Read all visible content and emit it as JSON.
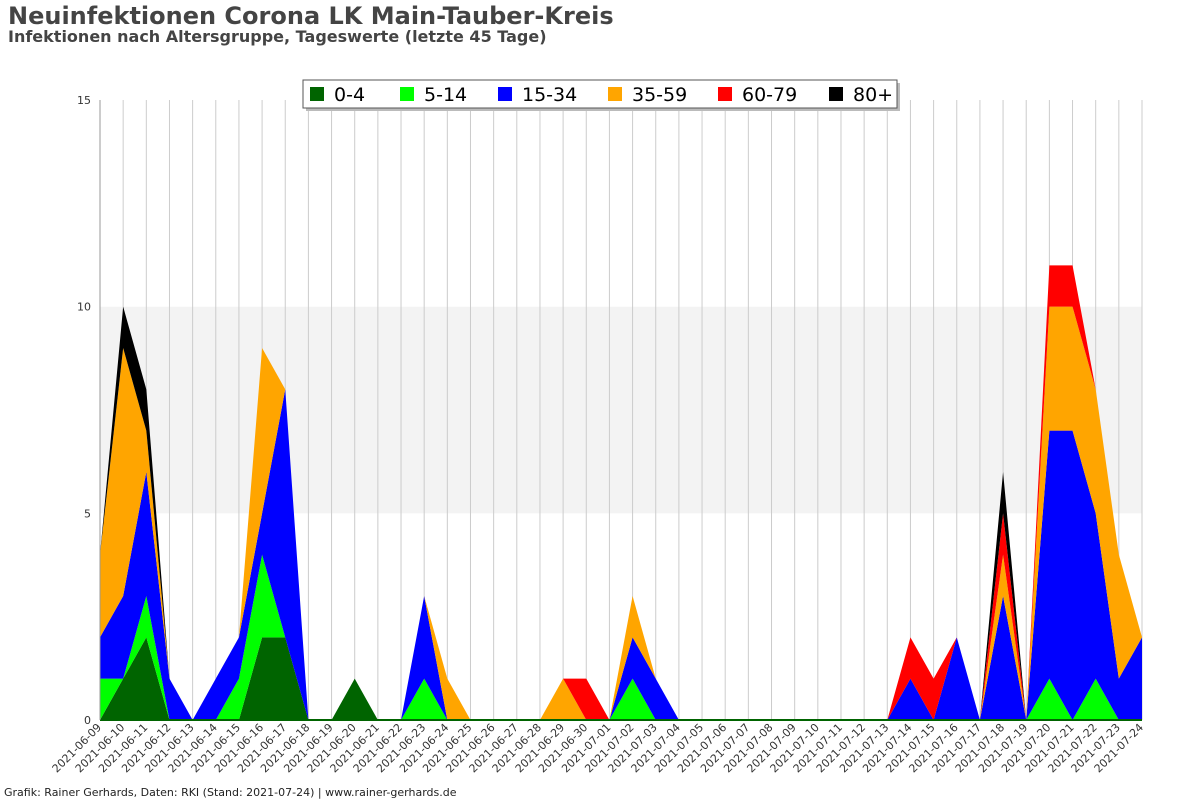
{
  "header": {
    "title": "Neuinfektionen Corona LK Main-Tauber-Kreis",
    "subtitle": "Infektionen nach Altersgruppe, Tageswerte (letzte 45 Tage)"
  },
  "footer": {
    "credit": "Grafik: Rainer Gerhards, Daten: RKI (Stand: 2021-07-24) | www.rainer-gerhards.de"
  },
  "chart_data": {
    "type": "area",
    "stacked": true,
    "x": [
      "2021-06-09",
      "2021-06-10",
      "2021-06-11",
      "2021-06-12",
      "2021-06-13",
      "2021-06-14",
      "2021-06-15",
      "2021-06-16",
      "2021-06-17",
      "2021-06-18",
      "2021-06-19",
      "2021-06-20",
      "2021-06-21",
      "2021-06-22",
      "2021-06-23",
      "2021-06-24",
      "2021-06-25",
      "2021-06-26",
      "2021-06-27",
      "2021-06-28",
      "2021-06-29",
      "2021-06-30",
      "2021-07-01",
      "2021-07-02",
      "2021-07-03",
      "2021-07-04",
      "2021-07-05",
      "2021-07-06",
      "2021-07-07",
      "2021-07-08",
      "2021-07-09",
      "2021-07-10",
      "2021-07-11",
      "2021-07-12",
      "2021-07-13",
      "2021-07-14",
      "2021-07-15",
      "2021-07-16",
      "2021-07-17",
      "2021-07-18",
      "2021-07-19",
      "2021-07-20",
      "2021-07-21",
      "2021-07-22",
      "2021-07-23",
      "2021-07-24"
    ],
    "series": [
      {
        "name": "0-4",
        "color": "#006400",
        "values": [
          0,
          1,
          2,
          0,
          0,
          0,
          0,
          2,
          2,
          0,
          0,
          1,
          0,
          0,
          0,
          0,
          0,
          0,
          0,
          0,
          0,
          0,
          0,
          0,
          0,
          0,
          0,
          0,
          0,
          0,
          0,
          0,
          0,
          0,
          0,
          0,
          0,
          0,
          0,
          0,
          0,
          0,
          0,
          0,
          0,
          0
        ]
      },
      {
        "name": "5-14",
        "color": "#00ff00",
        "values": [
          1,
          0,
          1,
          0,
          0,
          0,
          1,
          2,
          0,
          0,
          0,
          0,
          0,
          0,
          1,
          0,
          0,
          0,
          0,
          0,
          0,
          0,
          0,
          1,
          0,
          0,
          0,
          0,
          0,
          0,
          0,
          0,
          0,
          0,
          0,
          0,
          0,
          0,
          0,
          0,
          0,
          1,
          0,
          1,
          0,
          0
        ]
      },
      {
        "name": "15-34",
        "color": "#0000ff",
        "values": [
          1,
          2,
          3,
          1,
          0,
          1,
          1,
          1,
          6,
          0,
          0,
          0,
          0,
          0,
          2,
          0,
          0,
          0,
          0,
          0,
          0,
          0,
          0,
          1,
          1,
          0,
          0,
          0,
          0,
          0,
          0,
          0,
          0,
          0,
          0,
          1,
          0,
          2,
          0,
          3,
          0,
          6,
          7,
          4,
          1,
          2
        ]
      },
      {
        "name": "35-59",
        "color": "#ffa500",
        "values": [
          2,
          6,
          1,
          0,
          0,
          0,
          0,
          4,
          0,
          0,
          0,
          0,
          0,
          0,
          0,
          1,
          0,
          0,
          0,
          0,
          1,
          0,
          0,
          1,
          0,
          0,
          0,
          0,
          0,
          0,
          0,
          0,
          0,
          0,
          0,
          0,
          0,
          0,
          0,
          1,
          0,
          3,
          3,
          3,
          3,
          0
        ]
      },
      {
        "name": "60-79",
        "color": "#ff0000",
        "values": [
          0,
          0,
          0,
          0,
          0,
          0,
          0,
          0,
          0,
          0,
          0,
          0,
          0,
          0,
          0,
          0,
          0,
          0,
          0,
          0,
          0,
          1,
          0,
          0,
          0,
          0,
          0,
          0,
          0,
          0,
          0,
          0,
          0,
          0,
          0,
          1,
          1,
          0,
          0,
          1,
          0,
          1,
          1,
          0,
          0,
          0
        ]
      },
      {
        "name": "80+",
        "color": "#000000",
        "values": [
          0,
          1,
          1,
          0,
          0,
          0,
          0,
          0,
          0,
          0,
          0,
          0,
          0,
          0,
          0,
          0,
          0,
          0,
          0,
          0,
          0,
          0,
          0,
          0,
          0,
          0,
          0,
          0,
          0,
          0,
          0,
          0,
          0,
          0,
          0,
          0,
          0,
          0,
          0,
          1,
          0,
          0,
          0,
          0,
          0,
          0
        ]
      }
    ],
    "ylim": [
      0,
      15
    ],
    "yticks": [
      0,
      5,
      10,
      15
    ],
    "grid": true,
    "legend_position": "top-center"
  }
}
